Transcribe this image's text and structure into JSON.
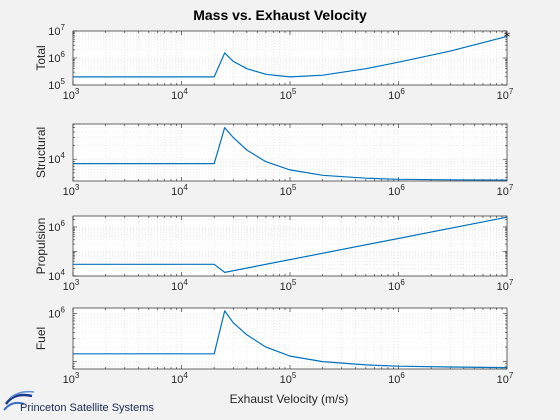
{
  "chart_data": {
    "type": "line",
    "title": "Mass vs. Exhaust Velocity",
    "xlabel": "Exhaust Velocity (m/s)",
    "xscale": "log",
    "xlim": [
      1000,
      10000000
    ],
    "x_ticks": [
      3,
      4,
      5,
      6,
      7
    ],
    "tick_base": "10",
    "grid": true,
    "color": "#0072bd",
    "panels": [
      {
        "ylabel": "Total",
        "yscale": "log",
        "ylim": [
          100000,
          10000000
        ],
        "y_ticks": [
          5,
          6,
          7
        ],
        "marker": {
          "x": 10000000,
          "y": 6300000,
          "symbol": "*"
        },
        "x": [
          1000,
          20000,
          20000,
          25000,
          30000,
          40000,
          60000,
          100000,
          200000,
          500000,
          1000000,
          3000000,
          10000000
        ],
        "y": [
          200000,
          200000,
          200000,
          1550000,
          750000,
          400000,
          250000,
          200000,
          230000,
          400000,
          700000,
          1800000,
          6300000
        ]
      },
      {
        "ylabel": "Structural",
        "yscale": "log",
        "ylim": [
          3300,
          60000
        ],
        "y_ticks": [
          4
        ],
        "x": [
          1000,
          20000,
          20000,
          25000,
          30000,
          40000,
          60000,
          100000,
          200000,
          500000,
          1000000,
          3000000,
          10000000
        ],
        "y": [
          8000,
          8000,
          8000,
          50000,
          30000,
          16000,
          8800,
          5800,
          4400,
          3800,
          3600,
          3500,
          3450
        ]
      },
      {
        "ylabel": "Propulsion",
        "yscale": "log",
        "ylim": [
          10000,
          2800000
        ],
        "y_ticks": [
          4,
          6
        ],
        "x": [
          1000,
          20000,
          20000,
          25000,
          10000000
        ],
        "y": [
          30000,
          30000,
          30000,
          14000,
          2500000
        ]
      },
      {
        "ylabel": "Fuel",
        "yscale": "log",
        "ylim": [
          70000,
          1300000
        ],
        "y_ticks": [
          6
        ],
        "x": [
          1000,
          20000,
          20000,
          25000,
          30000,
          40000,
          60000,
          100000,
          200000,
          500000,
          1000000,
          3000000,
          10000000
        ],
        "y": [
          145000,
          145000,
          145000,
          1130000,
          640000,
          360000,
          200000,
          130000,
          100000,
          85000,
          80000,
          77000,
          75000
        ]
      }
    ]
  },
  "logo": {
    "text": "Princeton Satellite Systems"
  }
}
